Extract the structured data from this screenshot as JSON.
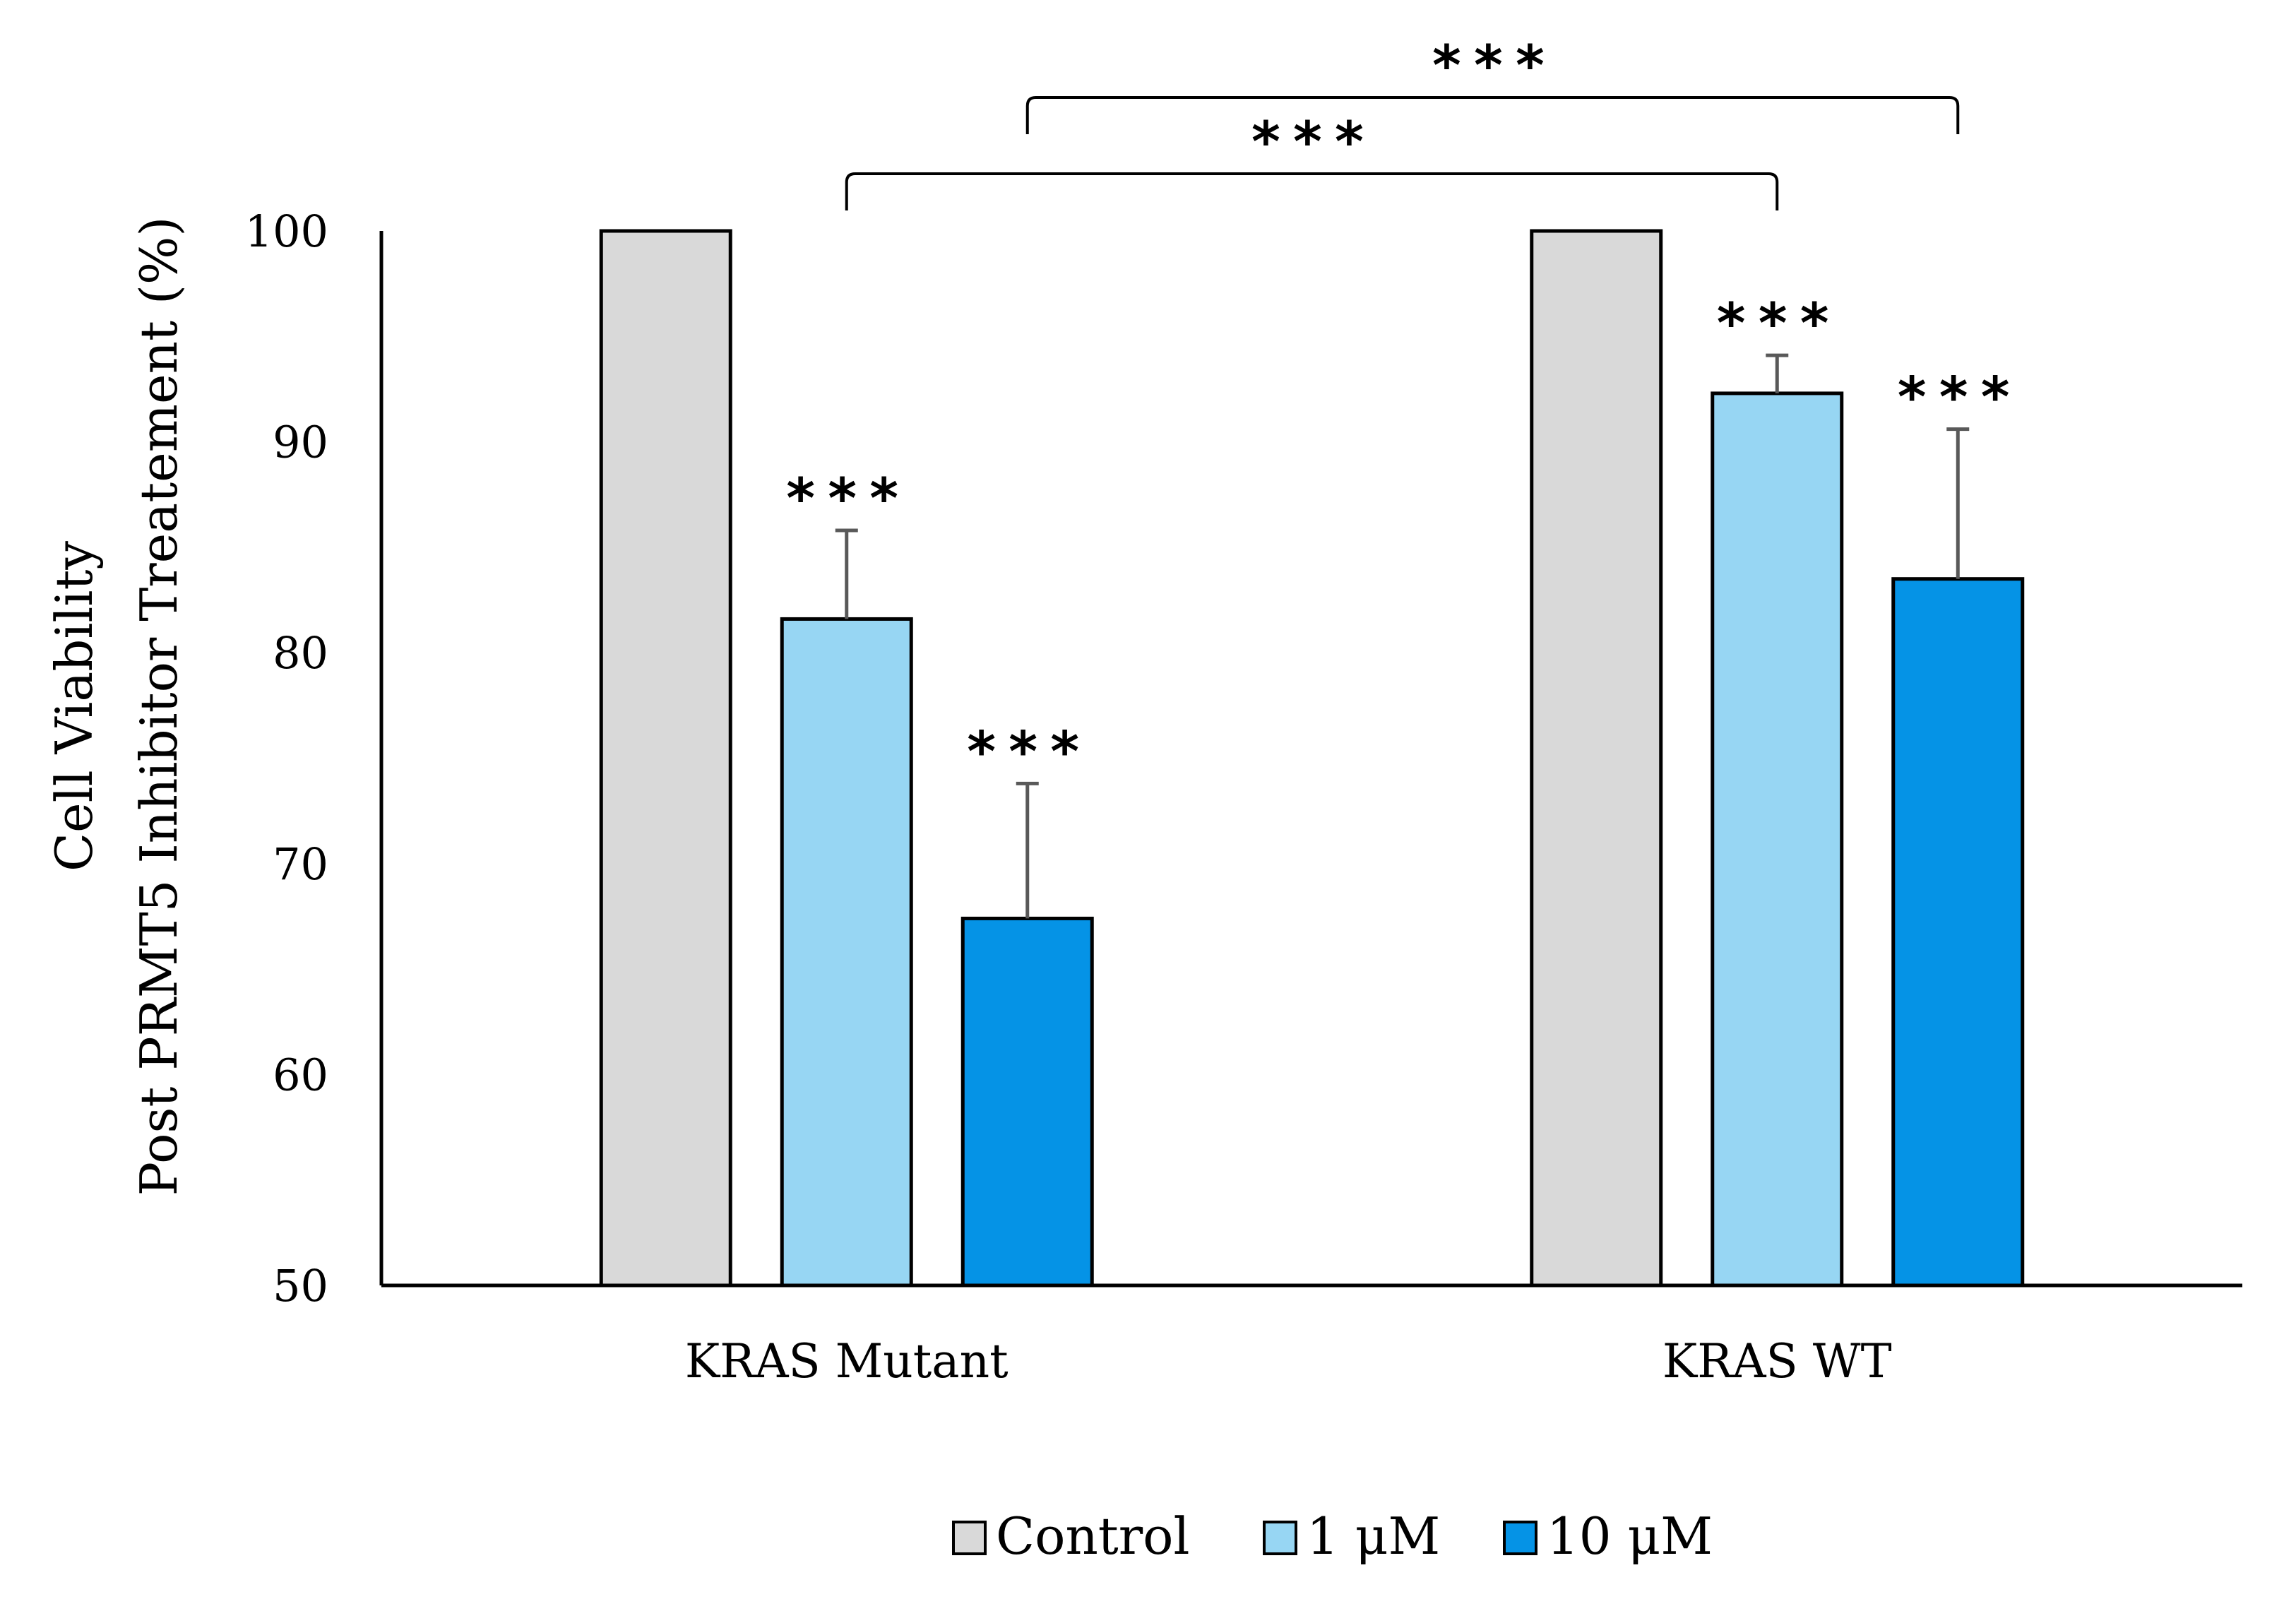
{
  "chart_data": {
    "type": "bar",
    "ylabel_line1": "Cell Viability",
    "ylabel_line2": "Post PRMT5 Inhibitor Treatement (%)",
    "ylim": [
      50,
      100
    ],
    "yticks": [
      "50",
      "60",
      "70",
      "80",
      "90",
      "100"
    ],
    "categories": [
      "KRAS Mutant",
      "KRAS WT"
    ],
    "series": [
      {
        "name": "Control",
        "color": "#d9d9d9",
        "values": [
          100,
          100
        ],
        "errors": [
          0,
          0
        ],
        "sig": [
          "",
          ""
        ]
      },
      {
        "name": "1 μM",
        "color": "#97d6f3",
        "values": [
          81.6,
          92.3
        ],
        "errors": [
          4.2,
          1.8
        ],
        "sig": [
          "***",
          "***"
        ]
      },
      {
        "name": "10 μM",
        "color": "#0593e6",
        "values": [
          67.4,
          83.5
        ],
        "errors": [
          6.4,
          7.1
        ],
        "sig": [
          "***",
          "***"
        ]
      }
    ],
    "brackets": [
      {
        "label": "***",
        "from": {
          "category": 0,
          "series": 2
        },
        "to": {
          "category": 1,
          "series": 2
        }
      },
      {
        "label": "***",
        "from": {
          "category": 0,
          "series": 1
        },
        "to": {
          "category": 1,
          "series": 1
        }
      }
    ],
    "legend_position": "bottom-center",
    "grid": false
  }
}
